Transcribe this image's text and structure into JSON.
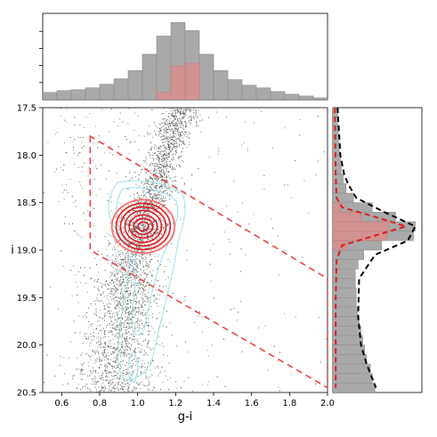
{
  "chart_data": [
    {
      "panel": "top-histogram",
      "type": "bar",
      "xlim": [
        0.5,
        2.0
      ],
      "bin_edges": [
        0.5,
        0.575,
        0.65,
        0.725,
        0.8,
        0.875,
        0.95,
        1.025,
        1.1,
        1.175,
        1.25,
        1.325,
        1.4,
        1.475,
        1.55,
        1.625,
        1.7,
        1.775,
        1.85,
        1.925,
        2.0
      ],
      "series": [
        {
          "color": "#a9a9a9",
          "values": [
            0.08,
            0.1,
            0.11,
            0.13,
            0.17,
            0.23,
            0.32,
            0.5,
            0.7,
            0.85,
            0.76,
            0.5,
            0.32,
            0.22,
            0.16,
            0.13,
            0.09,
            0.06,
            0.04,
            0.02
          ]
        },
        {
          "color": "#d98f8f",
          "values": [
            0,
            0,
            0,
            0,
            0,
            0,
            0,
            0,
            0.08,
            0.37,
            0.4,
            0,
            0,
            0,
            0,
            0,
            0,
            0,
            0,
            0
          ]
        }
      ]
    },
    {
      "panel": "main-scatter",
      "type": "scatter",
      "xlabel": "g-i",
      "ylabel": "i",
      "xlim": [
        0.5,
        2.0
      ],
      "ylim": [
        20.5,
        17.5
      ],
      "x_ticks": [
        "0.6",
        "0.8",
        "1.0",
        "1.2",
        "1.4",
        "1.6",
        "1.8",
        "2.0"
      ],
      "y_ticks": [
        "17.5",
        "18.0",
        "18.5",
        "19.0",
        "19.5",
        "20.0",
        "20.5"
      ],
      "point_color": "#555555",
      "selection_box": {
        "color": "#ee4444",
        "style": "dashed",
        "vertices": [
          [
            0.75,
            17.8
          ],
          [
            0.75,
            19.0
          ],
          [
            2.0,
            20.45
          ],
          [
            2.0,
            19.3
          ]
        ]
      },
      "clump_center": [
        1.02,
        18.76
      ],
      "contours": {
        "cyan": "#9fe0e8",
        "red": "#e41a1c"
      }
    },
    {
      "panel": "right-histogram",
      "type": "bar",
      "orientation": "horizontal",
      "ylim": [
        20.5,
        17.5
      ],
      "bin_edges": [
        17.5,
        17.6,
        17.7,
        17.8,
        17.9,
        18.0,
        18.1,
        18.2,
        18.3,
        18.4,
        18.5,
        18.6,
        18.7,
        18.8,
        18.9,
        19.0,
        19.1,
        19.2,
        19.3,
        19.4,
        19.5,
        19.6,
        19.7,
        19.8,
        19.9,
        20.0,
        20.1,
        20.2,
        20.3,
        20.4,
        20.5
      ],
      "series": [
        {
          "color": "#a9a9a9",
          "values": [
            0.05,
            0.05,
            0.06,
            0.06,
            0.07,
            0.08,
            0.09,
            0.11,
            0.14,
            0.22,
            0.42,
            0.67,
            0.88,
            0.86,
            0.52,
            0.33,
            0.27,
            0.24,
            0.24,
            0.25,
            0.25,
            0.26,
            0.28,
            0.3,
            0.32,
            0.34,
            0.36,
            0.4,
            0.42,
            0.45
          ]
        },
        {
          "color": "#d98f8f",
          "values": [
            0,
            0,
            0,
            0,
            0,
            0,
            0,
            0,
            0,
            0,
            0.08,
            0.3,
            0.6,
            0.58,
            0.15,
            0,
            0,
            0,
            0,
            0,
            0,
            0,
            0,
            0,
            0,
            0,
            0,
            0,
            0,
            0
          ]
        }
      ],
      "curves": [
        {
          "color": "#000000",
          "style": "dashed",
          "x": [
            0.05,
            0.08,
            0.12,
            0.16,
            0.25,
            0.55,
            0.88,
            0.8,
            0.45,
            0.28,
            0.27,
            0.3,
            0.36,
            0.44,
            0.46
          ],
          "y": [
            17.5,
            18.0,
            18.2,
            18.3,
            18.45,
            18.6,
            18.75,
            18.9,
            19.05,
            19.3,
            19.7,
            20.0,
            20.2,
            20.4,
            20.45
          ]
        },
        {
          "color": "#e41a1c",
          "style": "dashed",
          "x": [
            0.02,
            0.03,
            0.04,
            0.1,
            0.45,
            0.78,
            0.44,
            0.1,
            0.04,
            0.03,
            0.03
          ],
          "y": [
            17.5,
            18.2,
            18.45,
            18.55,
            18.65,
            18.75,
            18.85,
            18.95,
            19.1,
            19.5,
            20.45
          ]
        }
      ]
    }
  ]
}
